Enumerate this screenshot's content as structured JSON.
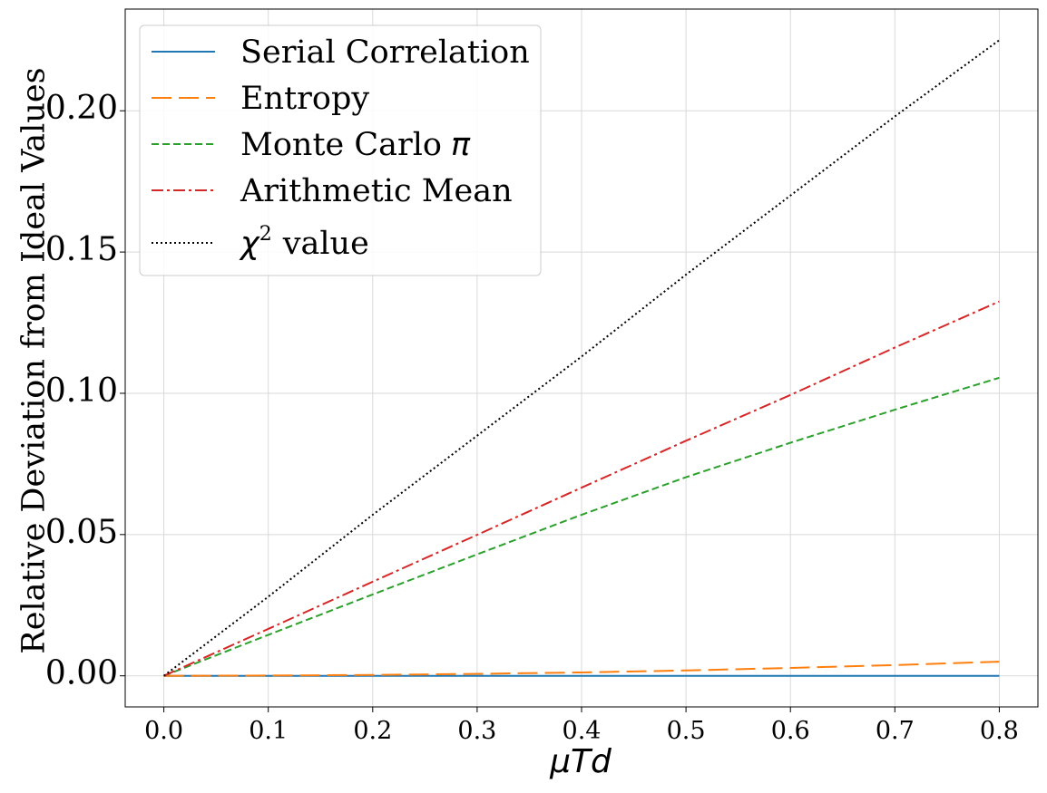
{
  "chart_data": {
    "type": "line",
    "title": "",
    "xlabel": "μTd",
    "ylabel": "Relative Deviation from Ideal Values",
    "xlim": [
      -0.037,
      0.837
    ],
    "ylim": [
      -0.011,
      0.236
    ],
    "xticks": [
      0.0,
      0.1,
      0.2,
      0.3,
      0.4,
      0.5,
      0.6,
      0.7,
      0.8
    ],
    "xtick_labels": [
      "0.0",
      "0.1",
      "0.2",
      "0.3",
      "0.4",
      "0.5",
      "0.6",
      "0.7",
      "0.8"
    ],
    "yticks": [
      0.0,
      0.05,
      0.1,
      0.15,
      0.2
    ],
    "ytick_labels": [
      "0.00",
      "0.05",
      "0.10",
      "0.15",
      "0.20"
    ],
    "grid": true,
    "legend_position": "top-left",
    "series": [
      {
        "name": "Serial Correlation",
        "color": "#1f77b4",
        "dash": "solid",
        "x": [
          0.0,
          0.1,
          0.2,
          0.3,
          0.4,
          0.5,
          0.6,
          0.7,
          0.8
        ],
        "y": [
          0.0,
          0.0,
          0.0,
          0.0,
          0.0,
          0.0,
          0.0,
          0.0,
          0.0
        ]
      },
      {
        "name": "Entropy",
        "color": "#ff7f0e",
        "dash": "long-dash",
        "x": [
          0.0,
          0.1,
          0.2,
          0.3,
          0.4,
          0.5,
          0.6,
          0.7,
          0.8
        ],
        "y": [
          0.0,
          0.0001,
          0.0003,
          0.0007,
          0.0012,
          0.0019,
          0.0028,
          0.0038,
          0.005
        ]
      },
      {
        "name": "Monte Carlo π",
        "color": "#2ca02c",
        "dash": "dashed",
        "x": [
          0.0,
          0.1,
          0.2,
          0.3,
          0.4,
          0.5,
          0.6,
          0.7,
          0.8
        ],
        "y": [
          0.0,
          0.0145,
          0.0288,
          0.043,
          0.057,
          0.0703,
          0.0825,
          0.0942,
          0.1055
        ]
      },
      {
        "name": "Arithmetic Mean",
        "color": "#d62728",
        "dash": "dash-dot",
        "x": [
          0.0,
          0.1,
          0.2,
          0.3,
          0.4,
          0.5,
          0.6,
          0.7,
          0.8
        ],
        "y": [
          0.0,
          0.0166,
          0.0333,
          0.0499,
          0.0666,
          0.0832,
          0.0994,
          0.1162,
          0.1325
        ]
      },
      {
        "name": "χ² value",
        "color": "#000000",
        "dash": "dotted",
        "x": [
          0.0,
          0.1,
          0.2,
          0.3,
          0.4,
          0.5,
          0.6,
          0.7,
          0.8
        ],
        "y": [
          0.0,
          0.028,
          0.057,
          0.085,
          0.113,
          0.142,
          0.17,
          0.198,
          0.225
        ]
      }
    ],
    "legend_labels": {
      "serial": "Serial Correlation",
      "entropy": "Entropy",
      "monte_prefix": "Monte Carlo",
      "monte_symbol": "π",
      "mean": "Arithmetic Mean",
      "chi_symbol": "χ",
      "chi_exp": "2",
      "chi_suffix": "value"
    }
  }
}
